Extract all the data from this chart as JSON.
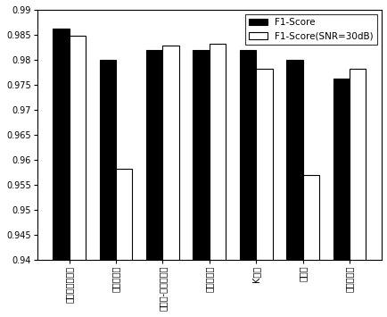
{
  "categories": [
    "长短时记忆网络",
    "支持向量机",
    "粒子群-支持向量机",
    "多层感知机",
    "K近邻",
    "决策树",
    "朴素贝叶斯"
  ],
  "f1_score": [
    0.9863,
    0.98,
    0.982,
    0.982,
    0.982,
    0.98,
    0.9762
  ],
  "f1_score_snr": [
    0.9848,
    0.9582,
    0.9828,
    0.9832,
    0.9782,
    0.957,
    0.9782
  ],
  "ylim": [
    0.94,
    0.99
  ],
  "yticks": [
    0.94,
    0.945,
    0.95,
    0.955,
    0.96,
    0.965,
    0.97,
    0.975,
    0.98,
    0.985,
    0.99
  ],
  "bar_width": 0.35,
  "black_color": "#000000",
  "white_color": "#ffffff",
  "edge_color": "#000000",
  "legend_labels": [
    "F1-Score",
    "F1-Score(SNR=30dB)"
  ],
  "tick_fontsize": 7,
  "legend_fontsize": 7.5
}
